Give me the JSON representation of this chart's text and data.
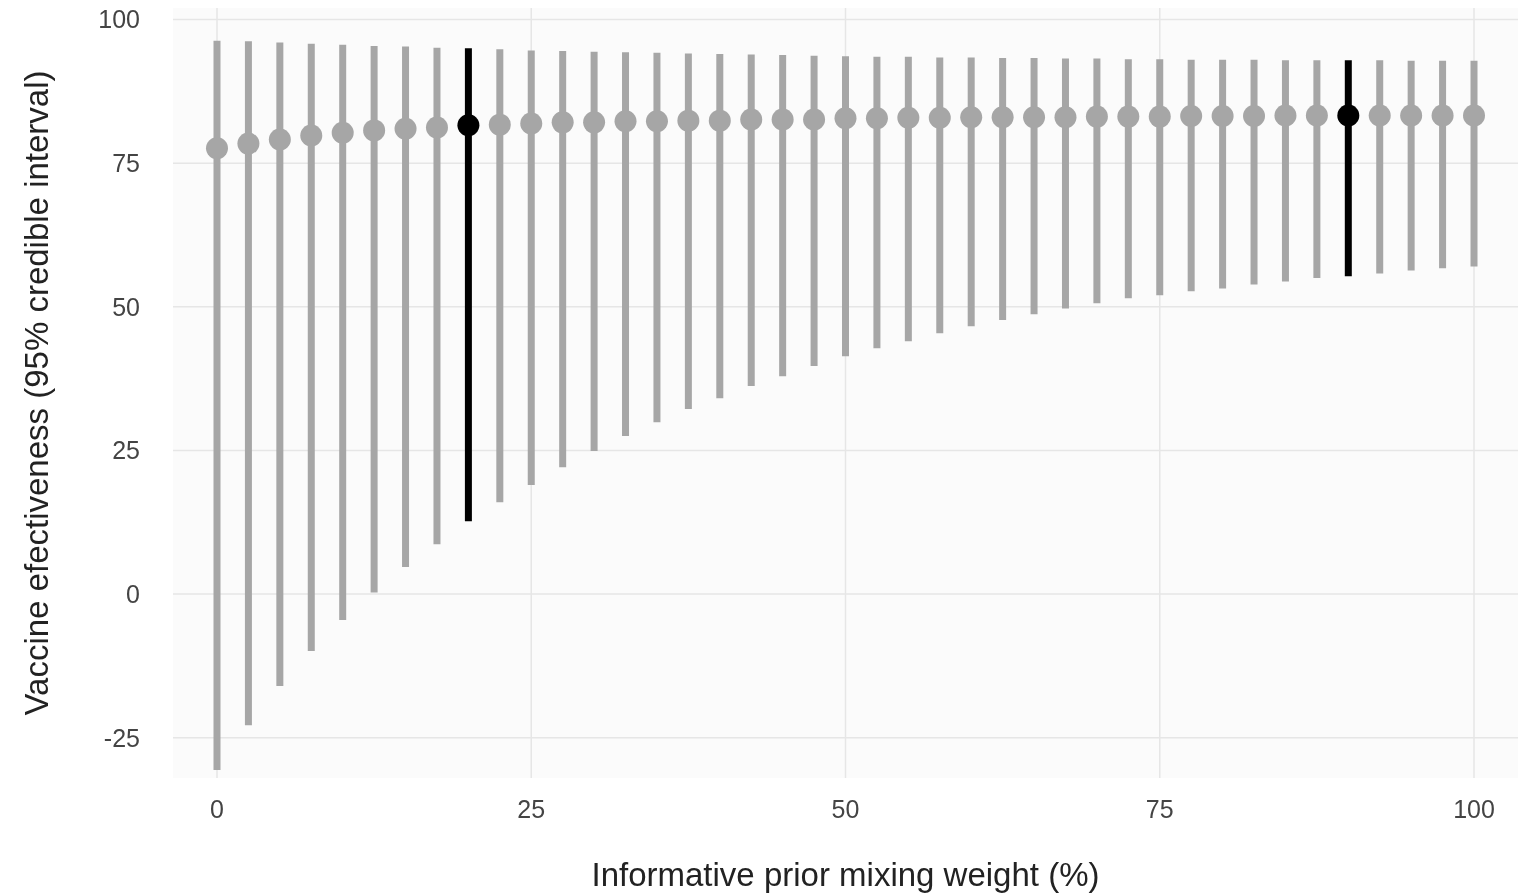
{
  "chart_data": {
    "type": "scatter",
    "xlabel": "Informative prior mixing weight (%)",
    "ylabel": "Vaccine efectiveness (95% credible interval)",
    "x": [
      0,
      2.5,
      5,
      7.5,
      10,
      12.5,
      15,
      17.5,
      20,
      22.5,
      25,
      27.5,
      30,
      32.5,
      35,
      37.5,
      40,
      42.5,
      45,
      47.5,
      50,
      52.5,
      55,
      57.5,
      60,
      62.5,
      65,
      67.5,
      70,
      72.5,
      75,
      77.5,
      80,
      82.5,
      85,
      87.5,
      90,
      92.5,
      95,
      97.5,
      100
    ],
    "values": [
      77.6,
      78.4,
      79.1,
      79.8,
      80.3,
      80.7,
      81,
      81.2,
      81.6,
      81.7,
      81.9,
      82.1,
      82.1,
      82.3,
      82.3,
      82.4,
      82.4,
      82.6,
      82.6,
      82.6,
      82.8,
      82.8,
      82.9,
      82.9,
      83,
      83,
      83,
      83,
      83.1,
      83.1,
      83.1,
      83.2,
      83.2,
      83.2,
      83.3,
      83.3,
      83.3,
      83.3,
      83.3,
      83.3,
      83.3
    ],
    "errors": [
      [
        -30.6,
        96.3
      ],
      [
        -22.8,
        96.2
      ],
      [
        -16,
        96
      ],
      [
        -9.9,
        95.8
      ],
      [
        -4.5,
        95.6
      ],
      [
        0.3,
        95.4
      ],
      [
        4.7,
        95.3
      ],
      [
        8.7,
        95.1
      ],
      [
        12.7,
        95
      ],
      [
        16,
        94.8
      ],
      [
        19,
        94.6
      ],
      [
        22.1,
        94.5
      ],
      [
        24.9,
        94.4
      ],
      [
        27.5,
        94.3
      ],
      [
        29.9,
        94.2
      ],
      [
        32.2,
        94.1
      ],
      [
        34.1,
        94
      ],
      [
        36.2,
        93.9
      ],
      [
        37.9,
        93.8
      ],
      [
        39.7,
        93.7
      ],
      [
        41.4,
        93.6
      ],
      [
        42.8,
        93.5
      ],
      [
        44,
        93.5
      ],
      [
        45.4,
        93.4
      ],
      [
        46.6,
        93.4
      ],
      [
        47.7,
        93.3
      ],
      [
        48.7,
        93.3
      ],
      [
        49.7,
        93.2
      ],
      [
        50.6,
        93.2
      ],
      [
        51.5,
        93.1
      ],
      [
        52,
        93.1
      ],
      [
        52.7,
        93
      ],
      [
        53.2,
        93
      ],
      [
        53.9,
        93
      ],
      [
        54.4,
        92.9
      ],
      [
        55,
        92.9
      ],
      [
        55.3,
        92.9
      ],
      [
        55.8,
        92.9
      ],
      [
        56.3,
        92.8
      ],
      [
        56.7,
        92.8
      ],
      [
        57,
        92.8
      ]
    ],
    "colors": [
      "#a6a6a6",
      "#a6a6a6",
      "#a6a6a6",
      "#a6a6a6",
      "#a6a6a6",
      "#a6a6a6",
      "#a6a6a6",
      "#a6a6a6",
      "#000000",
      "#a6a6a6",
      "#a6a6a6",
      "#a6a6a6",
      "#a6a6a6",
      "#a6a6a6",
      "#a6a6a6",
      "#a6a6a6",
      "#a6a6a6",
      "#a6a6a6",
      "#a6a6a6",
      "#a6a6a6",
      "#a6a6a6",
      "#a6a6a6",
      "#a6a6a6",
      "#a6a6a6",
      "#a6a6a6",
      "#a6a6a6",
      "#a6a6a6",
      "#a6a6a6",
      "#a6a6a6",
      "#a6a6a6",
      "#a6a6a6",
      "#a6a6a6",
      "#a6a6a6",
      "#a6a6a6",
      "#a6a6a6",
      "#a6a6a6",
      "#000000",
      "#a6a6a6",
      "#a6a6a6",
      "#a6a6a6",
      "#a6a6a6"
    ],
    "xlim": [
      -3.5,
      103.5
    ],
    "xticks": [
      0,
      25,
      50,
      75,
      100
    ],
    "ylim": [
      -32,
      102
    ],
    "yticks": [
      -25,
      0,
      25,
      50,
      75,
      100
    ],
    "grid": true,
    "marker": "circle"
  }
}
